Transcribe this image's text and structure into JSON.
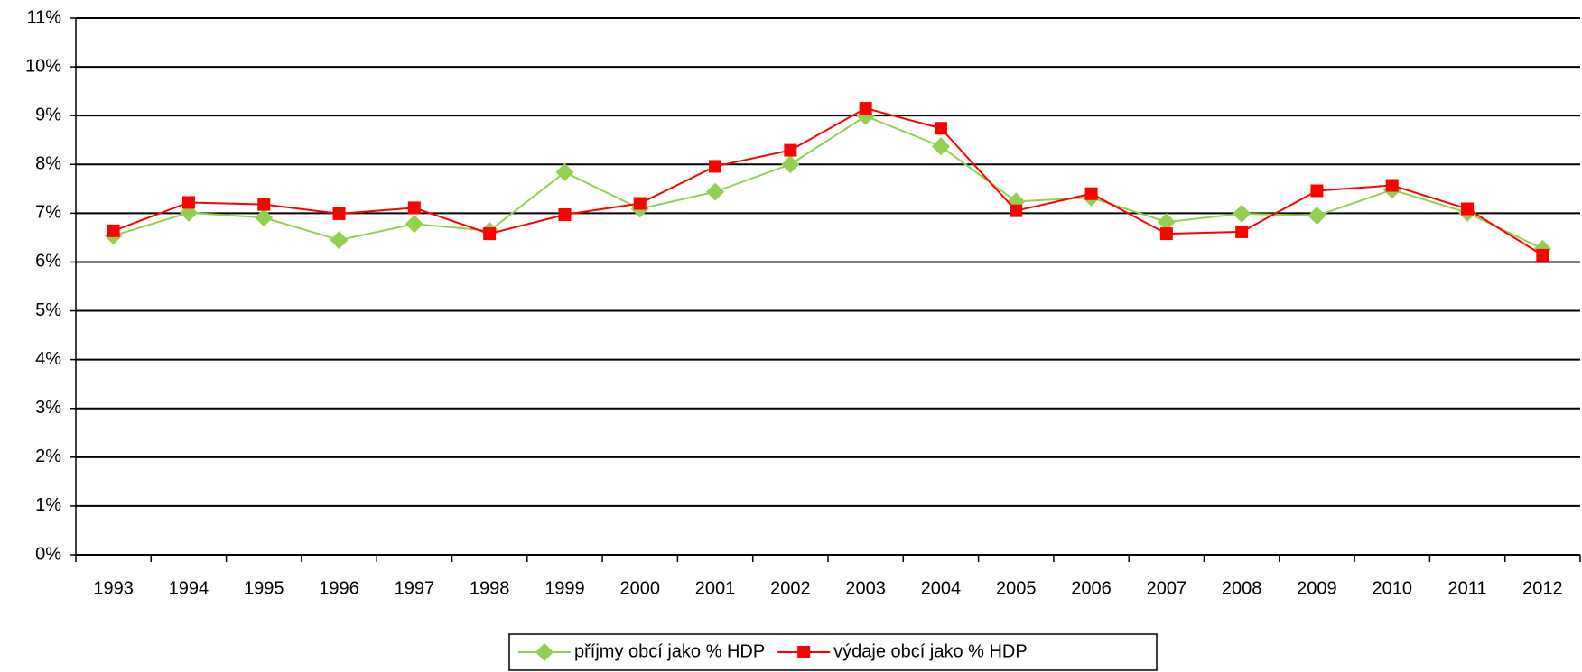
{
  "chart_data": {
    "type": "line",
    "categories": [
      "1993",
      "1994",
      "1995",
      "1996",
      "1997",
      "1998",
      "1999",
      "2000",
      "2001",
      "2002",
      "2003",
      "2004",
      "2005",
      "2006",
      "2007",
      "2008",
      "2009",
      "2010",
      "2011",
      "2012"
    ],
    "series": [
      {
        "name": "příjmy obcí jako % HDP",
        "color": "#92d050",
        "marker": "diamond",
        "values": [
          6.54,
          7.01,
          6.91,
          6.45,
          6.78,
          6.64,
          7.84,
          7.09,
          7.44,
          8.0,
          8.99,
          8.37,
          7.24,
          7.32,
          6.82,
          6.99,
          6.95,
          7.48,
          7.01,
          6.27
        ]
      },
      {
        "name": "výdaje obcí jako % HDP",
        "color": "#ff0000",
        "marker": "square",
        "values": [
          6.64,
          7.22,
          7.18,
          6.99,
          7.11,
          6.58,
          6.97,
          7.2,
          7.96,
          8.29,
          9.15,
          8.74,
          7.05,
          7.4,
          6.58,
          6.62,
          7.46,
          7.57,
          7.09,
          6.14
        ]
      }
    ],
    "ylim": [
      0,
      11
    ],
    "yticks": [
      {
        "value": 0,
        "label": "0%"
      },
      {
        "value": 1,
        "label": "1%"
      },
      {
        "value": 2,
        "label": "2%"
      },
      {
        "value": 3,
        "label": "3%"
      },
      {
        "value": 4,
        "label": "4%"
      },
      {
        "value": 5,
        "label": "5%"
      },
      {
        "value": 6,
        "label": "6%"
      },
      {
        "value": 7,
        "label": "7%"
      },
      {
        "value": 8,
        "label": "8%"
      },
      {
        "value": 9,
        "label": "9%"
      },
      {
        "value": 10,
        "label": "10%"
      },
      {
        "value": 11,
        "label": "11%"
      }
    ],
    "grid": true,
    "legend": "bottom"
  }
}
